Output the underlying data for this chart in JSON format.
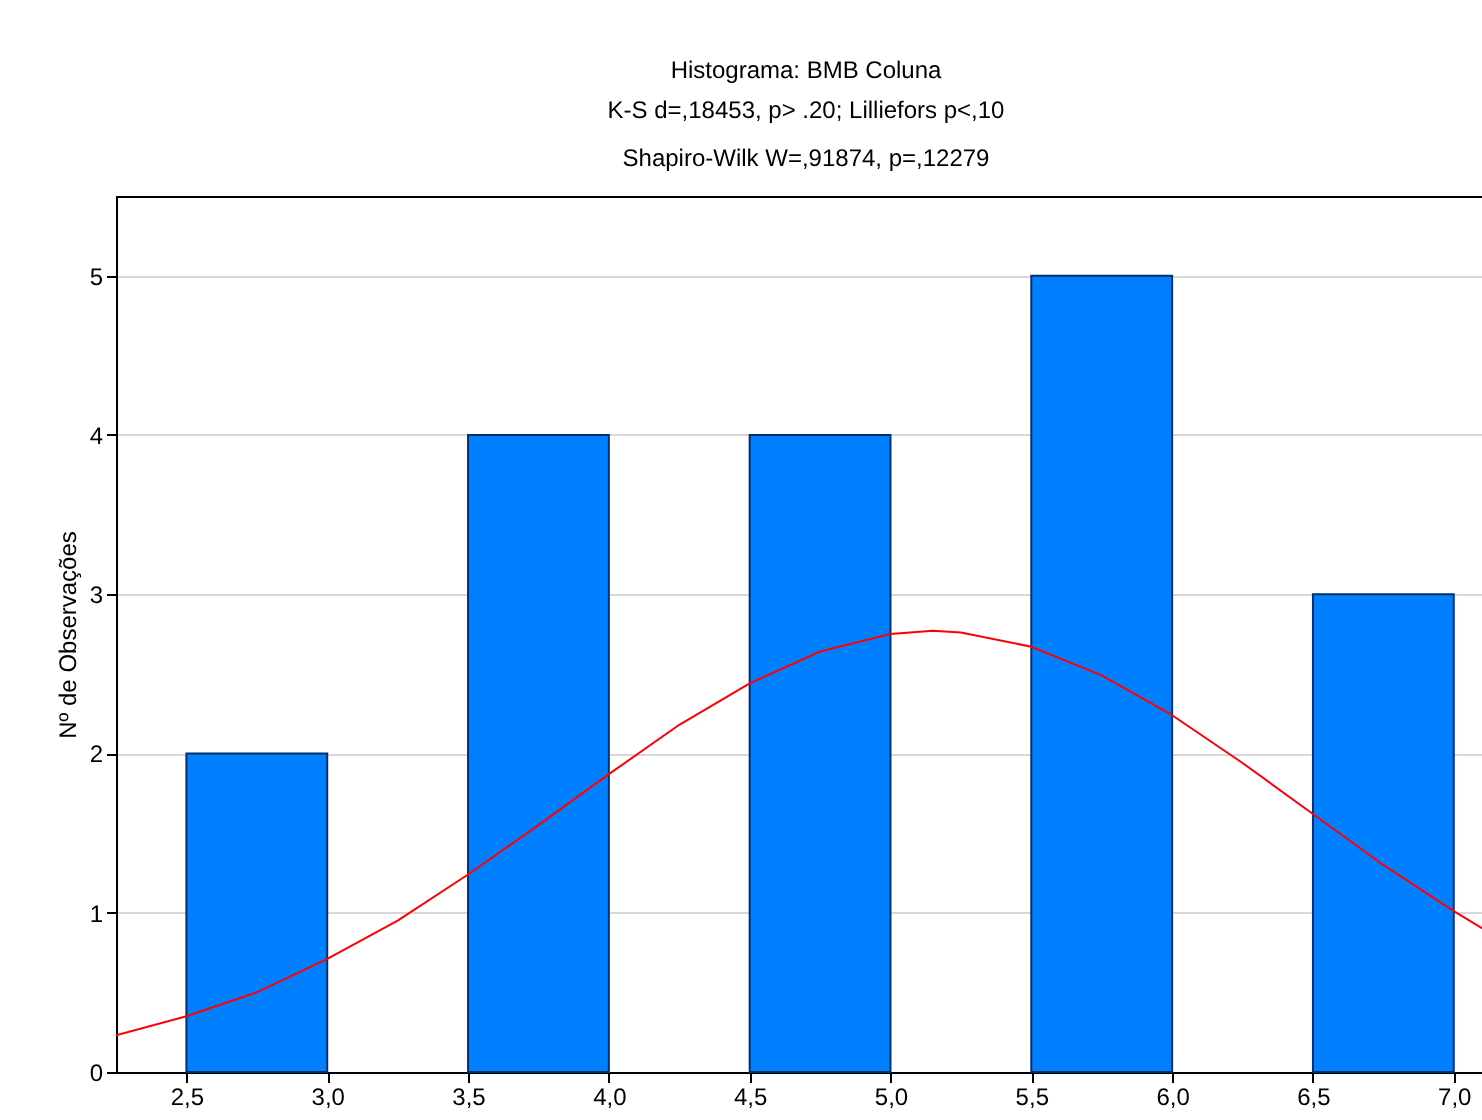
{
  "chart_data": {
    "type": "histogram",
    "title": "Histograma: BMB Coluna",
    "subtitle": "K-S d=,18453, p> .20; Lilliefors p<,10\nShapiro-Wilk W=,91874, p=,12279",
    "ylabel": "Nº de Observações",
    "bins": [
      2.5,
      3.0,
      3.5,
      4.0,
      4.5,
      5.0,
      5.5,
      6.0,
      6.5,
      7.0
    ],
    "values": [
      2,
      0,
      4,
      0,
      4,
      0,
      5,
      0,
      3
    ],
    "color": "#0080ff",
    "series": [
      {
        "type": "line",
        "color": "#ff0000",
        "x": [
          2.25,
          2.5,
          2.75,
          3.0,
          3.25,
          3.5,
          3.75,
          4.0,
          4.25,
          4.5,
          4.75,
          5.0,
          5.15,
          5.25,
          5.5,
          5.75,
          6.0,
          6.25,
          6.5,
          6.75,
          7.0,
          7.15
        ],
        "values": [
          0.23,
          0.35,
          0.5,
          0.71,
          0.95,
          1.24,
          1.55,
          1.87,
          2.18,
          2.44,
          2.64,
          2.75,
          2.77,
          2.76,
          2.67,
          2.49,
          2.24,
          1.94,
          1.62,
          1.3,
          1.01,
          0.85
        ]
      }
    ],
    "xlim": [
      2.25,
      7.15
    ],
    "xticks": [
      {
        "value": 2.5,
        "label": "2,5"
      },
      {
        "value": 3.0,
        "label": "3,0"
      },
      {
        "value": 3.5,
        "label": "3,5"
      },
      {
        "value": 4.0,
        "label": "4,0"
      },
      {
        "value": 4.5,
        "label": "4,5"
      },
      {
        "value": 5.0,
        "label": "5,0"
      },
      {
        "value": 5.5,
        "label": "5,5"
      },
      {
        "value": 6.0,
        "label": "6,0"
      },
      {
        "value": 6.5,
        "label": "6,5"
      },
      {
        "value": 7.0,
        "label": "7,0"
      }
    ],
    "ylim": [
      0,
      5.5
    ],
    "yticks": [
      0,
      1,
      2,
      3,
      4,
      5
    ],
    "grid": "y"
  }
}
